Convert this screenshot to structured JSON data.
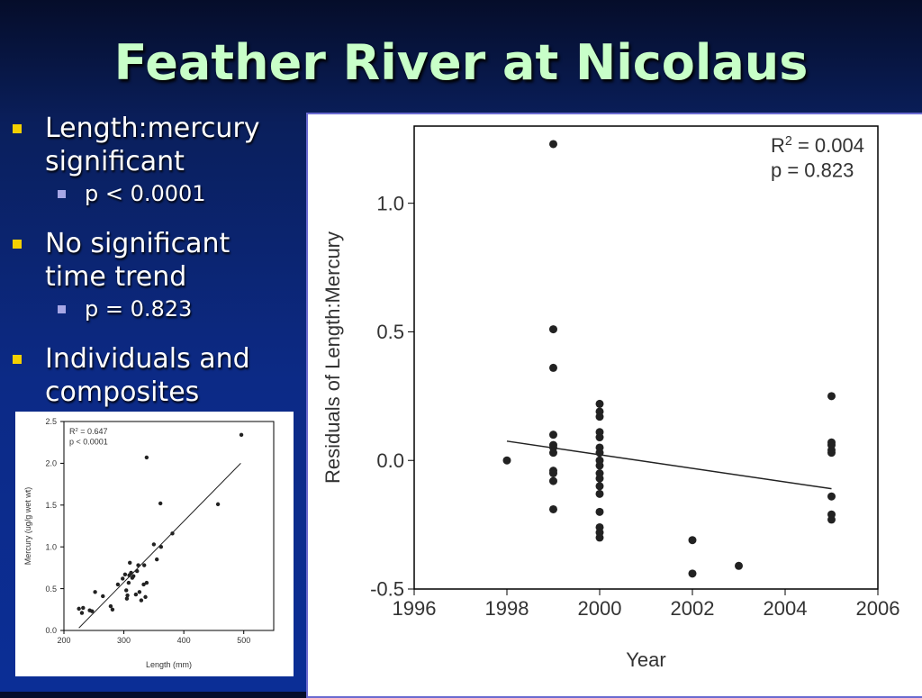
{
  "slide": {
    "title": "Feather River at Nicolaus",
    "bullets": [
      {
        "text": "Length:mercury significant",
        "sub": "p < 0.0001"
      },
      {
        "text": "No significant time trend",
        "sub": "p = 0.823"
      },
      {
        "text": "Individuals and composites"
      }
    ]
  },
  "colors": {
    "title": "#c8ffc8",
    "bullet": "#f4d000",
    "subbullet": "#a7a7e6"
  },
  "chart_data": [
    {
      "type": "scatter",
      "title": "",
      "xlabel": "Year",
      "ylabel": "Residuals of Length:Mercury",
      "xlim": [
        1996,
        2006
      ],
      "ylim": [
        -0.5,
        1.3
      ],
      "xticks": [
        1996,
        1998,
        2000,
        2002,
        2004,
        2006
      ],
      "yticks": [
        1.0,
        0.5,
        0.0,
        -0.5
      ],
      "annotation": [
        "R2 = 0.004",
        "p = 0.823"
      ],
      "grid": false,
      "points": [
        [
          1998,
          0.0
        ],
        [
          1999,
          1.23
        ],
        [
          1999,
          0.51
        ],
        [
          1999,
          0.36
        ],
        [
          1999,
          0.1
        ],
        [
          1999,
          0.06
        ],
        [
          1999,
          0.05
        ],
        [
          1999,
          0.03
        ],
        [
          1999,
          -0.04
        ],
        [
          1999,
          -0.05
        ],
        [
          1999,
          -0.08
        ],
        [
          1999,
          -0.19
        ],
        [
          2000,
          0.22
        ],
        [
          2000,
          0.19
        ],
        [
          2000,
          0.17
        ],
        [
          2000,
          0.11
        ],
        [
          2000,
          0.09
        ],
        [
          2000,
          0.05
        ],
        [
          2000,
          0.03
        ],
        [
          2000,
          0.0
        ],
        [
          2000,
          -0.02
        ],
        [
          2000,
          -0.05
        ],
        [
          2000,
          -0.07
        ],
        [
          2000,
          -0.1
        ],
        [
          2000,
          -0.13
        ],
        [
          2000,
          -0.2
        ],
        [
          2000,
          -0.26
        ],
        [
          2000,
          -0.28
        ],
        [
          2000,
          -0.3
        ],
        [
          2002,
          -0.31
        ],
        [
          2002,
          -0.44
        ],
        [
          2003,
          -0.41
        ],
        [
          2005,
          0.25
        ],
        [
          2005,
          0.07
        ],
        [
          2005,
          0.06
        ],
        [
          2005,
          0.04
        ],
        [
          2005,
          0.03
        ],
        [
          2005,
          -0.14
        ],
        [
          2005,
          -0.21
        ],
        [
          2005,
          -0.23
        ]
      ],
      "trendline": [
        [
          1998,
          0.075
        ],
        [
          2005,
          -0.11
        ]
      ]
    },
    {
      "type": "scatter",
      "title": "",
      "xlabel": "Length (mm)",
      "ylabel": "Mercury (ug/g wet wt)",
      "xlim": [
        200,
        550
      ],
      "ylim": [
        0,
        2.5
      ],
      "xticks": [
        200,
        300,
        400,
        500
      ],
      "yticks": [
        0.0,
        0.5,
        1.0,
        1.5,
        2.0,
        2.5
      ],
      "annotation": [
        "R2 = 0.647",
        "p < 0.0001"
      ],
      "grid": false,
      "points": [
        [
          225,
          0.26
        ],
        [
          230,
          0.21
        ],
        [
          232,
          0.27
        ],
        [
          243,
          0.24
        ],
        [
          247,
          0.23
        ],
        [
          252,
          0.46
        ],
        [
          265,
          0.41
        ],
        [
          278,
          0.29
        ],
        [
          281,
          0.25
        ],
        [
          290,
          0.55
        ],
        [
          298,
          0.62
        ],
        [
          302,
          0.67
        ],
        [
          304,
          0.48
        ],
        [
          305,
          0.38
        ],
        [
          306,
          0.42
        ],
        [
          308,
          0.57
        ],
        [
          309,
          0.66
        ],
        [
          310,
          0.81
        ],
        [
          312,
          0.69
        ],
        [
          314,
          0.63
        ],
        [
          316,
          0.65
        ],
        [
          320,
          0.43
        ],
        [
          322,
          0.71
        ],
        [
          324,
          0.78
        ],
        [
          326,
          0.46
        ],
        [
          329,
          0.36
        ],
        [
          333,
          0.55
        ],
        [
          334,
          0.78
        ],
        [
          336,
          0.4
        ],
        [
          338,
          0.57
        ],
        [
          350,
          1.03
        ],
        [
          355,
          0.85
        ],
        [
          361,
          1.52
        ],
        [
          362,
          1.0
        ],
        [
          381,
          1.16
        ],
        [
          338,
          2.07
        ],
        [
          457,
          1.51
        ],
        [
          496,
          2.34
        ]
      ],
      "trendline": [
        [
          225,
          0.03
        ],
        [
          495,
          2.0
        ]
      ]
    }
  ]
}
